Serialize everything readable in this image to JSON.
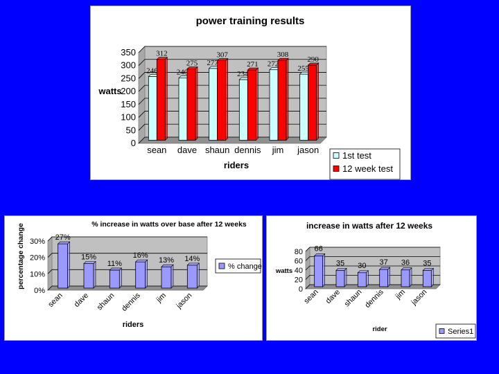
{
  "chart_data": [
    {
      "type": "bar",
      "title": "power training results",
      "xlabel": "riders",
      "ylabel": "watts",
      "categories": [
        "sean",
        "dave",
        "shaun",
        "dennis",
        "jim",
        "jason"
      ],
      "series": [
        {
          "name": "1st test",
          "values": [
            246,
            240,
            277,
            234,
            272,
            255
          ],
          "color": "#ccffff"
        },
        {
          "name": "12 week test",
          "values": [
            312,
            275,
            307,
            271,
            308,
            290
          ],
          "color": "#ff0000"
        }
      ],
      "ylim": [
        0,
        350
      ],
      "yticks": [
        "0",
        "50",
        "100",
        "150",
        "200",
        "250",
        "300",
        "350"
      ],
      "grid": true,
      "legend": "bottom-right",
      "plot_background": "#c0c0c0"
    },
    {
      "type": "bar",
      "title": "% increase in watts over base after 12 weeks",
      "xlabel": "riders",
      "ylabel": "percentage change",
      "categories": [
        "sean",
        "dave",
        "shaun",
        "dennis",
        "jim",
        "jason"
      ],
      "series": [
        {
          "name": "% change",
          "values": [
            27,
            15,
            11,
            16,
            13,
            14
          ],
          "color": "#9999ff"
        }
      ],
      "data_labels": [
        "27%",
        "15%",
        "11%",
        "16%",
        "13%",
        "14%"
      ],
      "ylim": [
        0,
        30
      ],
      "yticks": [
        "0%",
        "10%",
        "20%",
        "30%"
      ],
      "grid": true,
      "legend": "right",
      "plot_background": "#c0c0c0"
    },
    {
      "type": "bar",
      "title": "increase  in watts after 12 weeks",
      "xlabel": "rider",
      "ylabel": "watts",
      "categories": [
        "sean",
        "dave",
        "shaun",
        "dennis",
        "jim",
        "jason"
      ],
      "series": [
        {
          "name": "Series1",
          "values": [
            66,
            35,
            30,
            37,
            36,
            35
          ],
          "color": "#9999ff"
        }
      ],
      "ylim": [
        0,
        80
      ],
      "yticks": [
        "0",
        "20",
        "40",
        "60",
        "80"
      ],
      "grid": true,
      "legend": "bottom-right",
      "plot_background": "#c0c0c0"
    }
  ]
}
